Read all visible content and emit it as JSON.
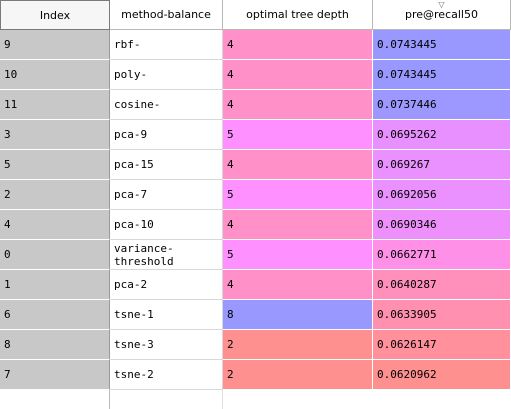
{
  "columns": {
    "index": "Index",
    "method_balance": "method-balance",
    "optimal_tree_depth": "optimal tree depth",
    "pre_recall50": "pre@recall50"
  },
  "sort_indicator_glyph": "▽",
  "colors": {
    "index_bg": "#c8c8c8",
    "depth_colors": {
      "2": "#ff9090",
      "4": "#ff90c8",
      "5": "#ff90ff",
      "8": "#9898ff"
    }
  },
  "rows": [
    {
      "index": "9",
      "method": "rbf-",
      "depth": "4",
      "pre": "0.0743445",
      "pre_color": "#9898ff"
    },
    {
      "index": "10",
      "method": "poly-",
      "depth": "4",
      "pre": "0.0743445",
      "pre_color": "#9898ff"
    },
    {
      "index": "11",
      "method": "cosine-",
      "depth": "4",
      "pre": "0.0737446",
      "pre_color": "#9c98ff"
    },
    {
      "index": "3",
      "method": "pca-9",
      "depth": "5",
      "pre": "0.0695262",
      "pre_color": "#e890ff"
    },
    {
      "index": "5",
      "method": "pca-15",
      "depth": "4",
      "pre": "0.069267",
      "pre_color": "#ea90ff"
    },
    {
      "index": "2",
      "method": "pca-7",
      "depth": "5",
      "pre": "0.0692056",
      "pre_color": "#ea90ff"
    },
    {
      "index": "4",
      "method": "pca-10",
      "depth": "4",
      "pre": "0.0690346",
      "pre_color": "#ee90fc"
    },
    {
      "index": "0",
      "method": "variance-\nthreshold",
      "depth": "5",
      "pre": "0.0662771",
      "pre_color": "#ff90e8"
    },
    {
      "index": "1",
      "method": "pca-2",
      "depth": "4",
      "pre": "0.0640287",
      "pre_color": "#ff90bc"
    },
    {
      "index": "6",
      "method": "tsne-1",
      "depth": "8",
      "pre": "0.0633905",
      "pre_color": "#ff90b0"
    },
    {
      "index": "8",
      "method": "tsne-3",
      "depth": "2",
      "pre": "0.0626147",
      "pre_color": "#ff909c"
    },
    {
      "index": "7",
      "method": "tsne-2",
      "depth": "2",
      "pre": "0.0620962",
      "pre_color": "#ff9090"
    }
  ]
}
